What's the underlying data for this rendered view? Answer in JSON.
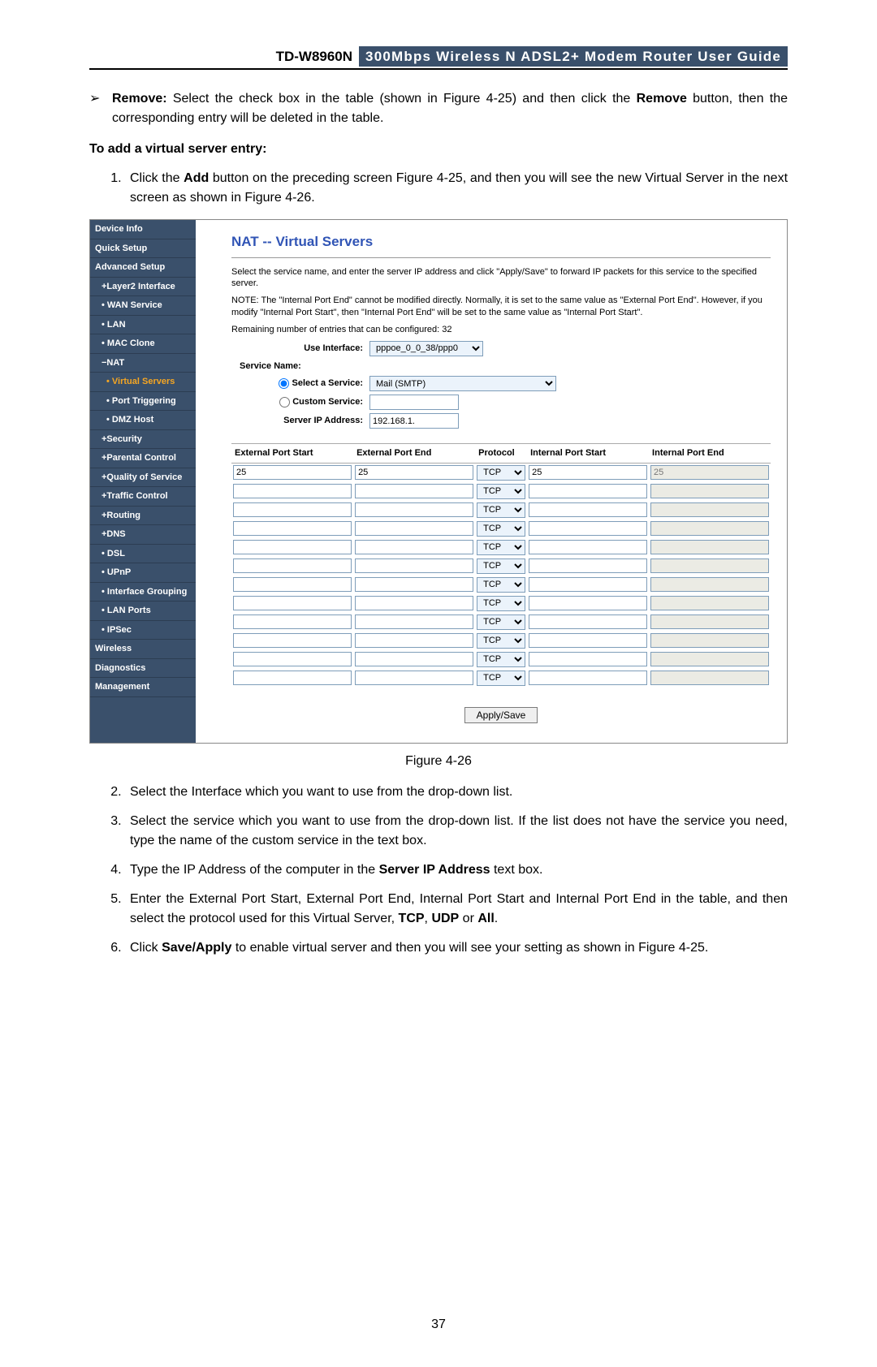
{
  "header": {
    "model": "TD-W8960N",
    "title": "300Mbps Wireless N ADSL2+ Modem Router User Guide"
  },
  "bullet": {
    "remove_label": "Remove:",
    "remove_text": " Select the check box in the table (shown in Figure 4-25) and then click the ",
    "remove_bold": "Remove",
    "remove_tail": " button, then the corresponding entry will be deleted in the table."
  },
  "subheading": "To add a virtual server entry:",
  "step1_a": "Click the ",
  "step1_b": "Add",
  "step1_c": " button on the preceding screen Figure 4-25, and then you will see the new Virtual Server in the next screen as shown in Figure 4-26.",
  "router": {
    "sidebar": {
      "device_info": "Device Info",
      "quick_setup": "Quick Setup",
      "advanced_setup": "Advanced Setup",
      "layer2": "+Layer2 Interface",
      "wan": "• WAN Service",
      "lan": "• LAN",
      "mac": "• MAC Clone",
      "nat": "−NAT",
      "virtual_servers": "• Virtual Servers",
      "port_trigger": "• Port Triggering",
      "dmz": "• DMZ Host",
      "security": "+Security",
      "parental": "+Parental Control",
      "qos": "+Quality of Service",
      "traffic": "+Traffic Control",
      "routing": "+Routing",
      "dns": "+DNS",
      "dsl": "• DSL",
      "upnp": "• UPnP",
      "ifgroup": "• Interface Grouping",
      "lanports": "• LAN Ports",
      "ipsec": "• IPSec",
      "wireless": "Wireless",
      "diagnostics": "Diagnostics",
      "management": "Management"
    },
    "content": {
      "heading": "NAT -- Virtual Servers",
      "desc": "Select the service name, and enter the server IP address and click \"Apply/Save\" to forward IP packets for this service to the specified server.",
      "note": "NOTE: The \"Internal Port End\" cannot be modified directly. Normally, it is set to the same value as \"External Port End\". However, if you modify \"Internal Port Start\", then \"Internal Port End\" will be set to the same value as \"Internal Port Start\".",
      "remaining": "Remaining number of entries that can be configured: 32",
      "use_interface_label": "Use Interface:",
      "use_interface_value": "pppoe_0_0_38/ppp0",
      "service_name_label": "Service Name:",
      "select_service_label": "Select a Service:",
      "select_service_value": "Mail (SMTP)",
      "custom_service_label": "Custom Service:",
      "server_ip_label": "Server IP Address:",
      "server_ip_value": "192.168.1.",
      "apply_label": "Apply/Save",
      "columns": {
        "eps": "External Port Start",
        "epe": "External Port End",
        "proto": "Protocol",
        "ips": "Internal Port Start",
        "ipe": "Internal Port End"
      },
      "first_row": {
        "eps": "25",
        "epe": "25",
        "proto": "TCP",
        "ips": "25",
        "ipe": "25"
      },
      "proto_default": "TCP",
      "num_rows": 12
    }
  },
  "figure_caption": "Figure 4-26",
  "step2": "Select the Interface which you want to use from the drop-down list.",
  "step3": "Select the service which you want to use from the drop-down list. If the list does not have the service you need, type the name of the custom service in the text box.",
  "step4_a": "Type the IP Address of the computer in the ",
  "step4_b": "Server IP Address",
  "step4_c": " text box.",
  "step5_a": "Enter the External Port Start, External Port End, Internal Port Start and Internal Port End in the table, and then select the protocol used for this Virtual Server, ",
  "step5_b": "TCP",
  "step5_c": ", ",
  "step5_d": "UDP",
  "step5_e": " or ",
  "step5_f": "All",
  "step5_g": ".",
  "step6_a": "Click ",
  "step6_b": "Save/Apply",
  "step6_c": " to enable virtual server and then you will see your setting as shown in Figure 4-25.",
  "page_number": "37"
}
